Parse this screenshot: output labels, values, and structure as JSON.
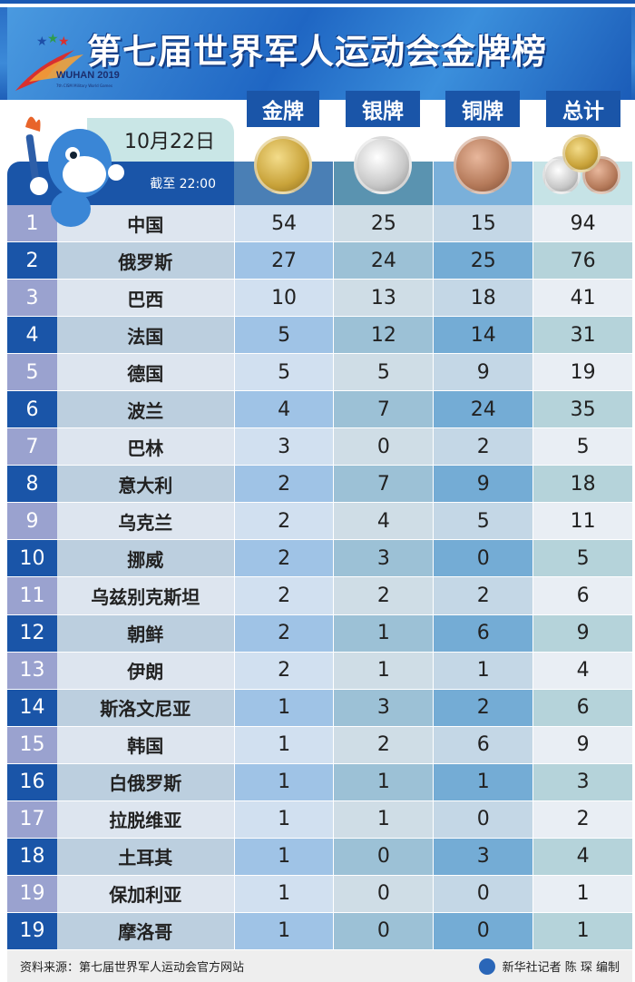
{
  "header": {
    "title": "第七届世界军人运动会金牌榜",
    "logo_text": "WUHAN 2019",
    "logo_subtitle": "7th CISM Military World Games",
    "date": "10月22日",
    "as_of": "截至 22:00"
  },
  "columns": {
    "gold": "金牌",
    "silver": "银牌",
    "bronze": "铜牌",
    "total": "总计"
  },
  "colors": {
    "header_blue": "#1a55a8",
    "rank_odd": "#9aa2cf",
    "gold": "#c9a33a",
    "silver": "#c8c8c8",
    "bronze": "#b57a5a"
  },
  "rows": [
    {
      "rank": "1",
      "country": "中国",
      "gold": "54",
      "silver": "25",
      "bronze": "15",
      "total": "94"
    },
    {
      "rank": "2",
      "country": "俄罗斯",
      "gold": "27",
      "silver": "24",
      "bronze": "25",
      "total": "76"
    },
    {
      "rank": "3",
      "country": "巴西",
      "gold": "10",
      "silver": "13",
      "bronze": "18",
      "total": "41"
    },
    {
      "rank": "4",
      "country": "法国",
      "gold": "5",
      "silver": "12",
      "bronze": "14",
      "total": "31"
    },
    {
      "rank": "5",
      "country": "德国",
      "gold": "5",
      "silver": "5",
      "bronze": "9",
      "total": "19"
    },
    {
      "rank": "6",
      "country": "波兰",
      "gold": "4",
      "silver": "7",
      "bronze": "24",
      "total": "35"
    },
    {
      "rank": "7",
      "country": "巴林",
      "gold": "3",
      "silver": "0",
      "bronze": "2",
      "total": "5"
    },
    {
      "rank": "8",
      "country": "意大利",
      "gold": "2",
      "silver": "7",
      "bronze": "9",
      "total": "18"
    },
    {
      "rank": "9",
      "country": "乌克兰",
      "gold": "2",
      "silver": "4",
      "bronze": "5",
      "total": "11"
    },
    {
      "rank": "10",
      "country": "挪威",
      "gold": "2",
      "silver": "3",
      "bronze": "0",
      "total": "5"
    },
    {
      "rank": "11",
      "country": "乌兹别克斯坦",
      "gold": "2",
      "silver": "2",
      "bronze": "2",
      "total": "6"
    },
    {
      "rank": "12",
      "country": "朝鲜",
      "gold": "2",
      "silver": "1",
      "bronze": "6",
      "total": "9"
    },
    {
      "rank": "13",
      "country": "伊朗",
      "gold": "2",
      "silver": "1",
      "bronze": "1",
      "total": "4"
    },
    {
      "rank": "14",
      "country": "斯洛文尼亚",
      "gold": "1",
      "silver": "3",
      "bronze": "2",
      "total": "6"
    },
    {
      "rank": "15",
      "country": "韩国",
      "gold": "1",
      "silver": "2",
      "bronze": "6",
      "total": "9"
    },
    {
      "rank": "16",
      "country": "白俄罗斯",
      "gold": "1",
      "silver": "1",
      "bronze": "1",
      "total": "3"
    },
    {
      "rank": "17",
      "country": "拉脱维亚",
      "gold": "1",
      "silver": "1",
      "bronze": "0",
      "total": "2"
    },
    {
      "rank": "18",
      "country": "土耳其",
      "gold": "1",
      "silver": "0",
      "bronze": "3",
      "total": "4"
    },
    {
      "rank": "19",
      "country": "保加利亚",
      "gold": "1",
      "silver": "0",
      "bronze": "0",
      "total": "1"
    },
    {
      "rank": "19",
      "country": "摩洛哥",
      "gold": "1",
      "silver": "0",
      "bronze": "0",
      "total": "1"
    }
  ],
  "footer": {
    "source": "资料来源：第七届世界军人运动会官方网站",
    "credit": "新华社记者 陈 琛 编制"
  }
}
